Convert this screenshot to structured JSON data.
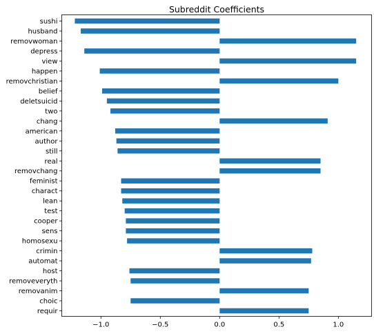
{
  "chart_data": {
    "type": "bar",
    "orientation": "horizontal",
    "title": "Subreddit Coefficients",
    "xlabel": "",
    "ylabel": "",
    "xlim": [
      -1.33,
      1.28
    ],
    "xticks": [
      -1.0,
      -0.5,
      0.0,
      0.5,
      1.0
    ],
    "xtick_labels": [
      "−1.0",
      "−0.5",
      "0.0",
      "0.5",
      "1.0"
    ],
    "grid": false,
    "legend": "none",
    "bar_color": "#1f77b4",
    "categories": [
      "sushi",
      "husband",
      "removwoman",
      "depress",
      "view",
      "happen",
      "removchristian",
      "belief",
      "deletsuicid",
      "two",
      "chang",
      "american",
      "author",
      "still",
      "real",
      "removchang",
      "feminist",
      "charact",
      "lean",
      "test",
      "cooper",
      "sens",
      "homosexu",
      "crimin",
      "automat",
      "host",
      "removeveryth",
      "removanim",
      "choic",
      "requir"
    ],
    "values": [
      -1.22,
      -1.17,
      1.15,
      -1.14,
      1.15,
      -1.01,
      1.0,
      -0.99,
      -0.95,
      -0.92,
      0.91,
      -0.88,
      -0.87,
      -0.86,
      0.85,
      0.85,
      -0.83,
      -0.83,
      -0.82,
      -0.8,
      -0.79,
      -0.79,
      -0.78,
      0.78,
      0.77,
      -0.76,
      -0.75,
      0.75,
      -0.75,
      0.75
    ]
  }
}
